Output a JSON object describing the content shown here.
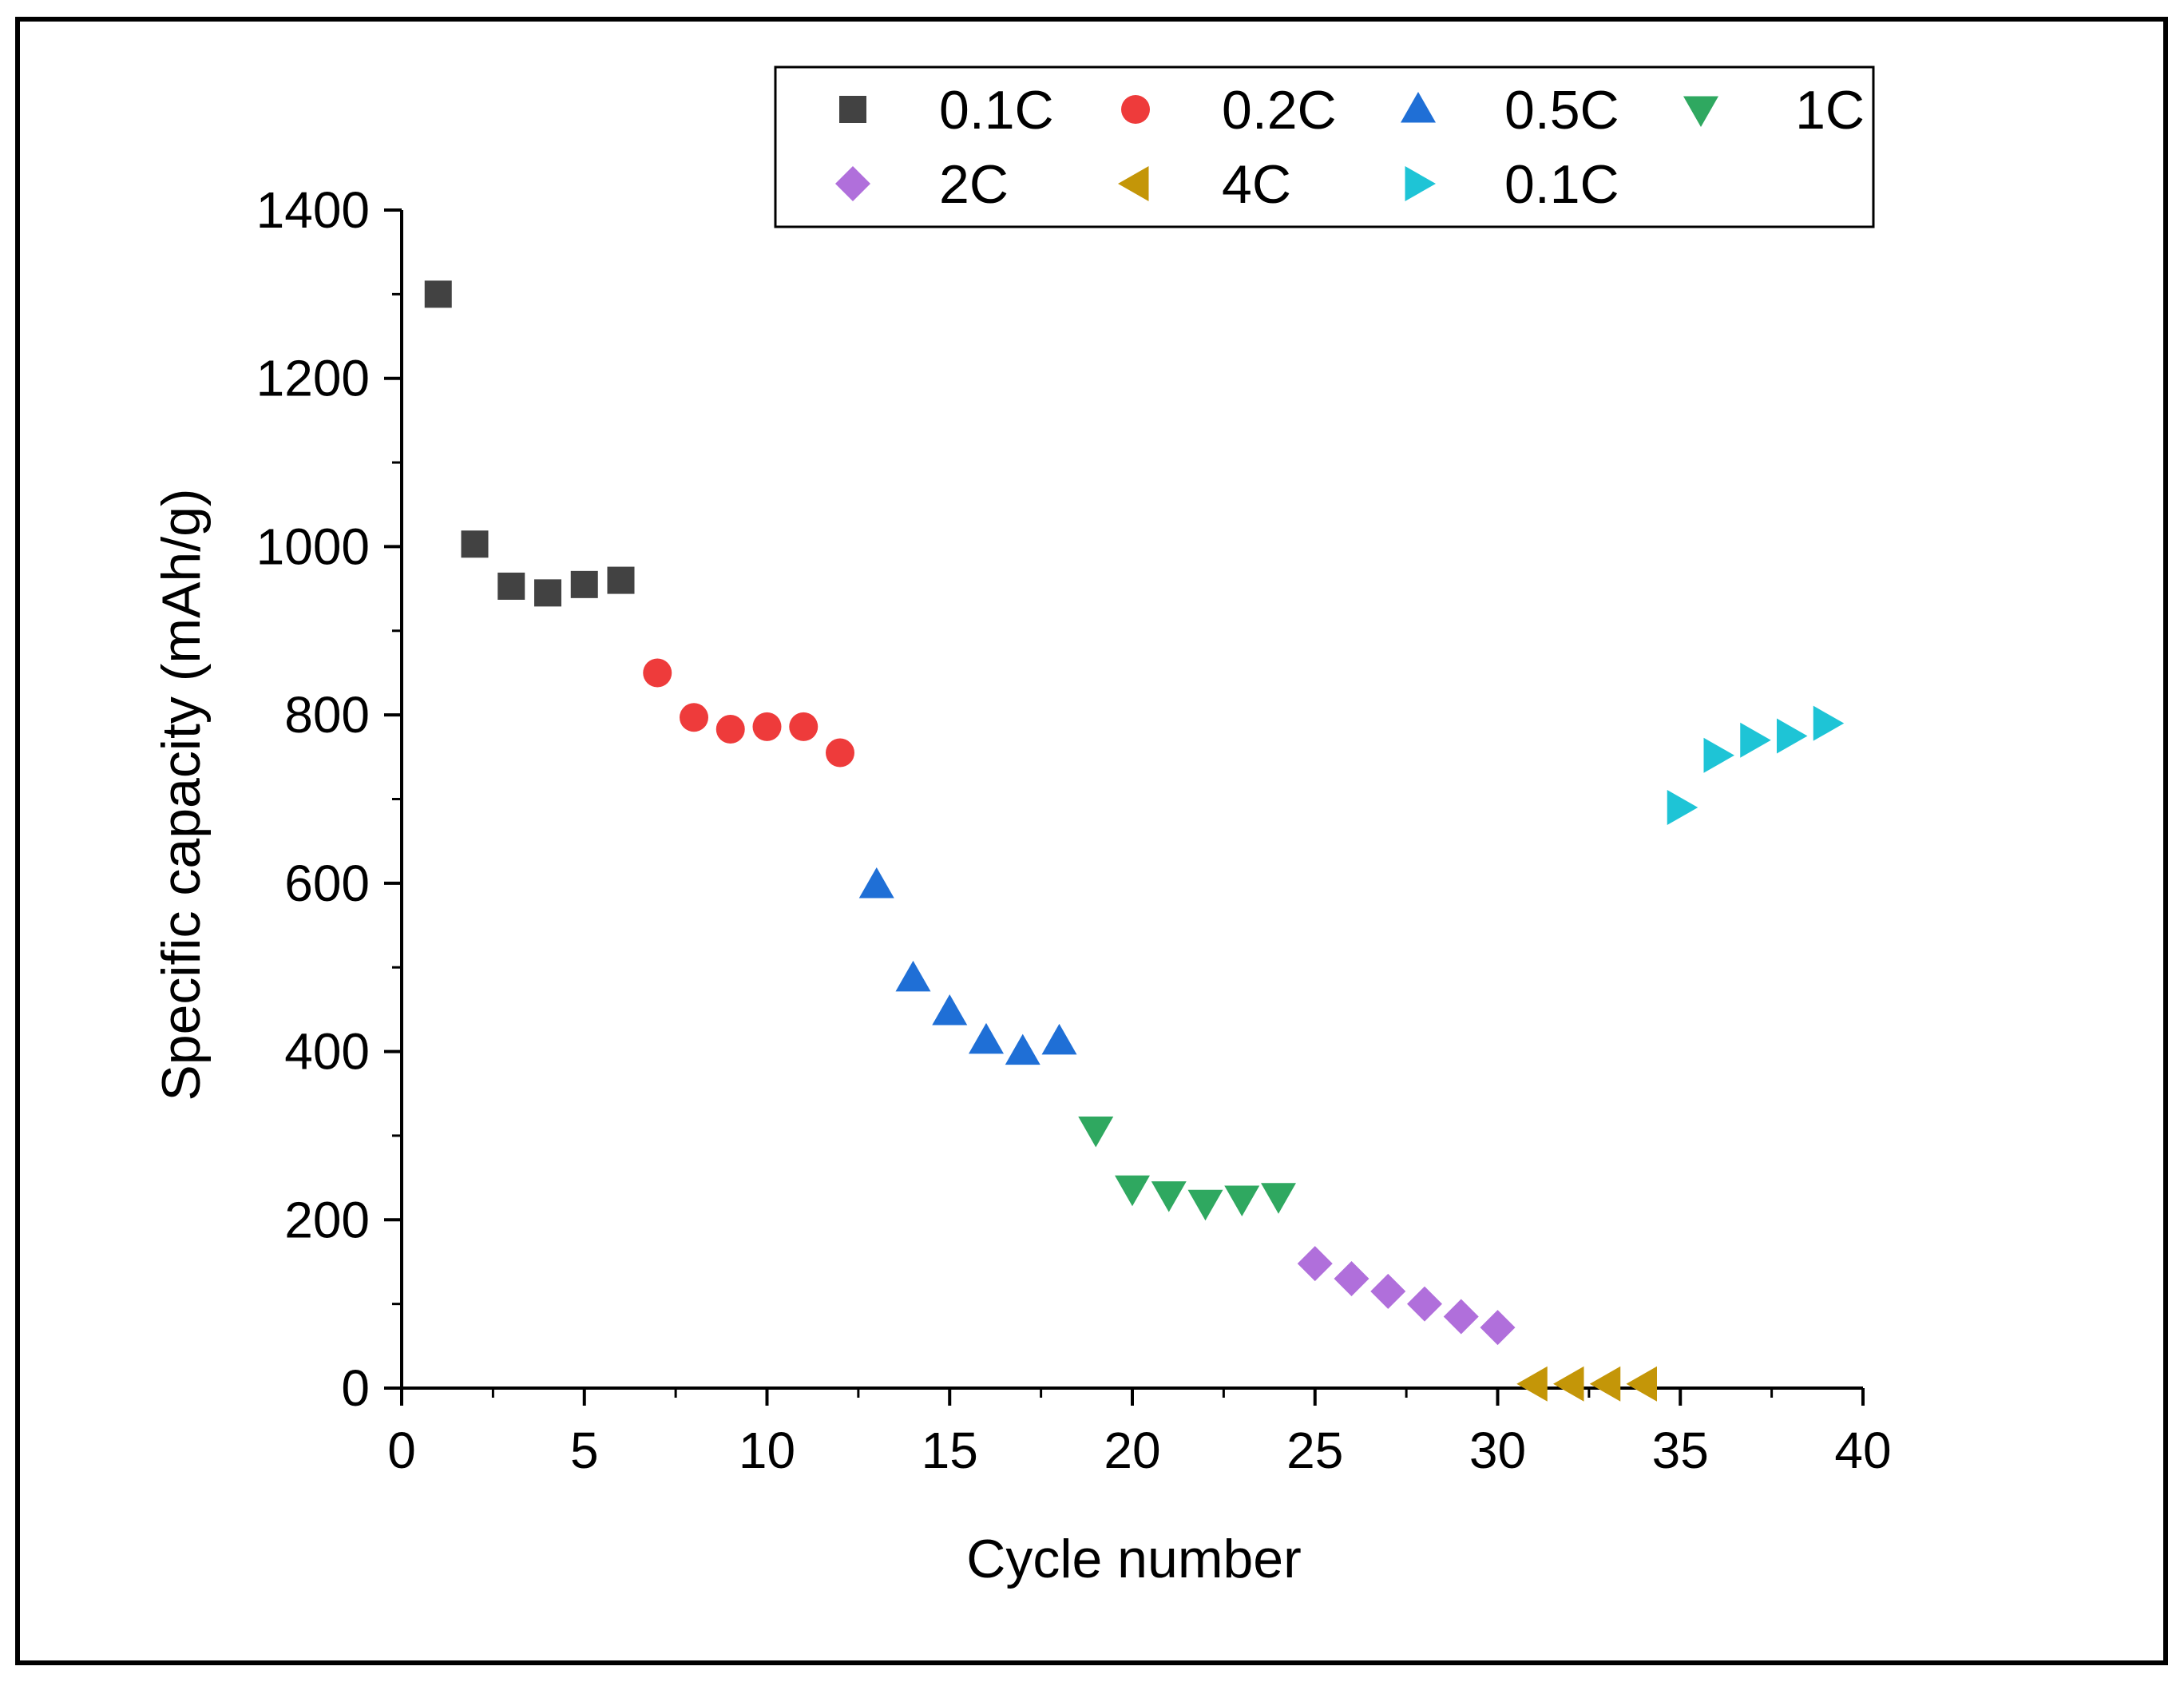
{
  "chart_data": {
    "type": "scatter",
    "title": "",
    "xlabel": "Cycle number",
    "ylabel": "Specific capacity (mAh/g)",
    "xlim": [
      0,
      40
    ],
    "ylim": [
      0,
      1400
    ],
    "xticks": [
      0,
      5,
      10,
      15,
      20,
      25,
      30,
      35,
      40
    ],
    "yticks": [
      0,
      200,
      400,
      600,
      800,
      1000,
      1200,
      1400
    ],
    "xtick_labels": [
      "0",
      "5",
      "10",
      "15",
      "20",
      "25",
      "30",
      "35",
      "40"
    ],
    "ytick_labels": [
      "0",
      "200",
      "400",
      "600",
      "800",
      "1000",
      "1200",
      "1400"
    ],
    "grid": false,
    "legend_position": "top-right",
    "series": [
      {
        "name": "0.1C",
        "marker": "square",
        "color": "#424242",
        "x": [
          1,
          2,
          3,
          4,
          5,
          6
        ],
        "y": [
          1300,
          1003,
          953,
          945,
          955,
          960
        ]
      },
      {
        "name": "0.2C",
        "marker": "circle",
        "color": "#ee3b3b",
        "x": [
          7,
          8,
          9,
          10,
          11,
          12
        ],
        "y": [
          850,
          797,
          783,
          786,
          786,
          755
        ]
      },
      {
        "name": "0.5C",
        "marker": "triangle-up",
        "color": "#1f6fd6",
        "x": [
          13,
          14,
          15,
          16,
          17,
          18
        ],
        "y": [
          598,
          487,
          447,
          413,
          400,
          412
        ]
      },
      {
        "name": "1C",
        "marker": "triangle-down",
        "color": "#2fa860",
        "x": [
          19,
          20,
          21,
          22,
          23,
          24
        ],
        "y": [
          307,
          237,
          230,
          220,
          225,
          228
        ]
      },
      {
        "name": "2C",
        "marker": "diamond",
        "color": "#b06fdb",
        "x": [
          25,
          26,
          27,
          28,
          29,
          30
        ],
        "y": [
          148,
          130,
          115,
          100,
          85,
          72
        ]
      },
      {
        "name": "4C",
        "marker": "triangle-left",
        "color": "#c49608",
        "x": [
          31,
          32,
          33,
          34
        ],
        "y": [
          5,
          5,
          5,
          5
        ]
      },
      {
        "name": "0.1C",
        "marker": "triangle-right",
        "color": "#1ec4d6",
        "x": [
          35,
          36,
          37,
          38,
          39
        ],
        "y": [
          690,
          752,
          770,
          775,
          790
        ]
      }
    ]
  }
}
